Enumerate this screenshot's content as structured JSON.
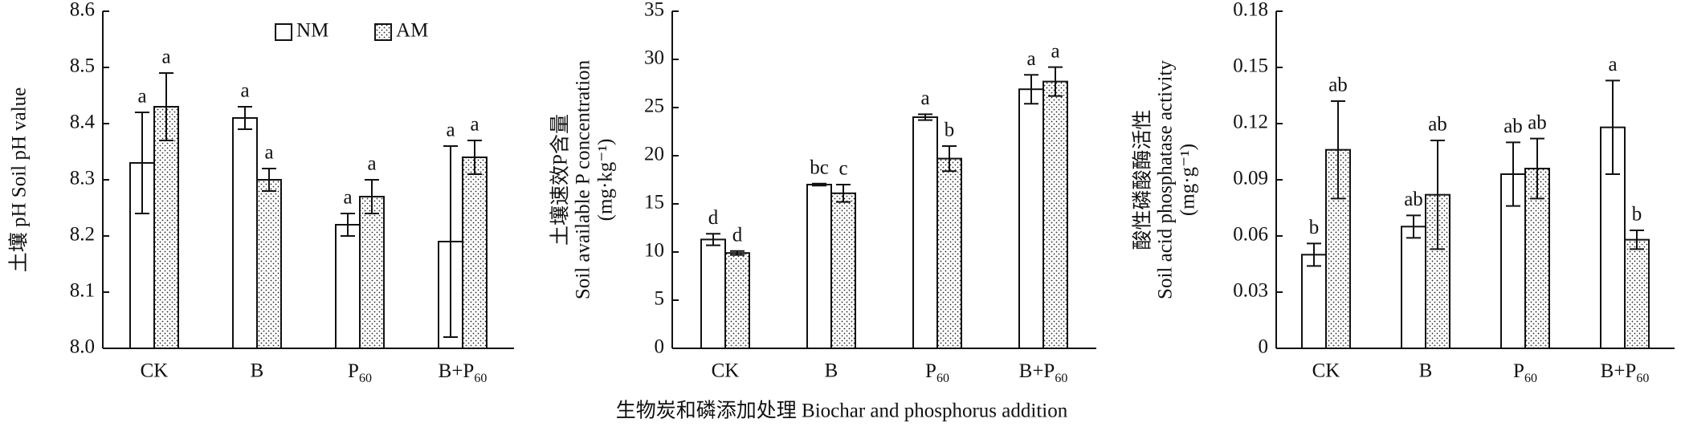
{
  "chart_data": [
    {
      "type": "bar",
      "ylabel": [
        "土壤 pH Soil pH value"
      ],
      "categories": [
        "CK",
        "B",
        "P60",
        "B+P60"
      ],
      "legend": "upper center",
      "ylim": [
        8.0,
        8.6
      ],
      "yticks": [
        {
          "value": 8.0,
          "label": "8.0"
        },
        8.1,
        8.2,
        8.3,
        8.4,
        8.5,
        8.6
      ],
      "series": [
        {
          "name": "NM",
          "color": "#ffffff",
          "values": [
            8.33,
            8.41,
            8.22,
            8.19
          ],
          "errors": [
            0.09,
            0.02,
            0.02,
            0.17
          ],
          "letters": [
            "a",
            "a",
            "a",
            "a"
          ]
        },
        {
          "name": "AM",
          "color": "#ffffff",
          "pattern": "dots",
          "values": [
            8.43,
            8.3,
            8.27,
            8.34
          ],
          "errors": [
            0.06,
            0.02,
            0.03,
            0.03
          ],
          "letters": [
            "a",
            "a",
            "a",
            "a"
          ]
        }
      ]
    },
    {
      "type": "bar",
      "ylabel": [
        "土壤速效P含量",
        "Soil available P concentration",
        "(mg·kg⁻¹)"
      ],
      "xlabel": "生物炭和磷添加处理 Biochar and phosphorus addition",
      "categories": [
        "CK",
        "B",
        "P60",
        "B+P60"
      ],
      "ylim": [
        0,
        35
      ],
      "yticks": [
        0,
        5,
        10,
        15,
        20,
        25,
        30,
        35
      ],
      "series": [
        {
          "name": "NM",
          "color": "#ffffff",
          "values": [
            11.3,
            17.0,
            24.0,
            26.9
          ],
          "errors": [
            0.6,
            0.1,
            0.3,
            1.5
          ],
          "letters": [
            "d",
            "bc",
            "a",
            "a"
          ]
        },
        {
          "name": "AM",
          "color": "#ffffff",
          "pattern": "dots",
          "values": [
            9.9,
            16.1,
            19.7,
            27.7
          ],
          "errors": [
            0.2,
            0.9,
            1.3,
            1.5
          ],
          "letters": [
            "d",
            "c",
            "b",
            "a"
          ]
        }
      ]
    },
    {
      "type": "bar",
      "ylabel": [
        "酸性磷酸酶活性",
        "Soil acid phosphatase activity",
        "(mg·g⁻¹)"
      ],
      "categories": [
        "CK",
        "B",
        "P60",
        "B+P60"
      ],
      "ylim": [
        0,
        0.18
      ],
      "yticks": [
        0,
        0.03,
        0.06,
        0.09,
        0.12,
        0.15,
        0.18
      ],
      "series": [
        {
          "name": "NM",
          "color": "#ffffff",
          "values": [
            0.05,
            0.065,
            0.093,
            0.118
          ],
          "errors": [
            0.006,
            0.006,
            0.017,
            0.025
          ],
          "letters": [
            "b",
            "ab",
            "ab",
            "a"
          ]
        },
        {
          "name": "AM",
          "color": "#ffffff",
          "pattern": "dots",
          "values": [
            0.106,
            0.082,
            0.096,
            0.058
          ],
          "errors": [
            0.026,
            0.029,
            0.016,
            0.005
          ],
          "letters": [
            "ab",
            "ab",
            "ab",
            "b"
          ]
        }
      ]
    }
  ]
}
